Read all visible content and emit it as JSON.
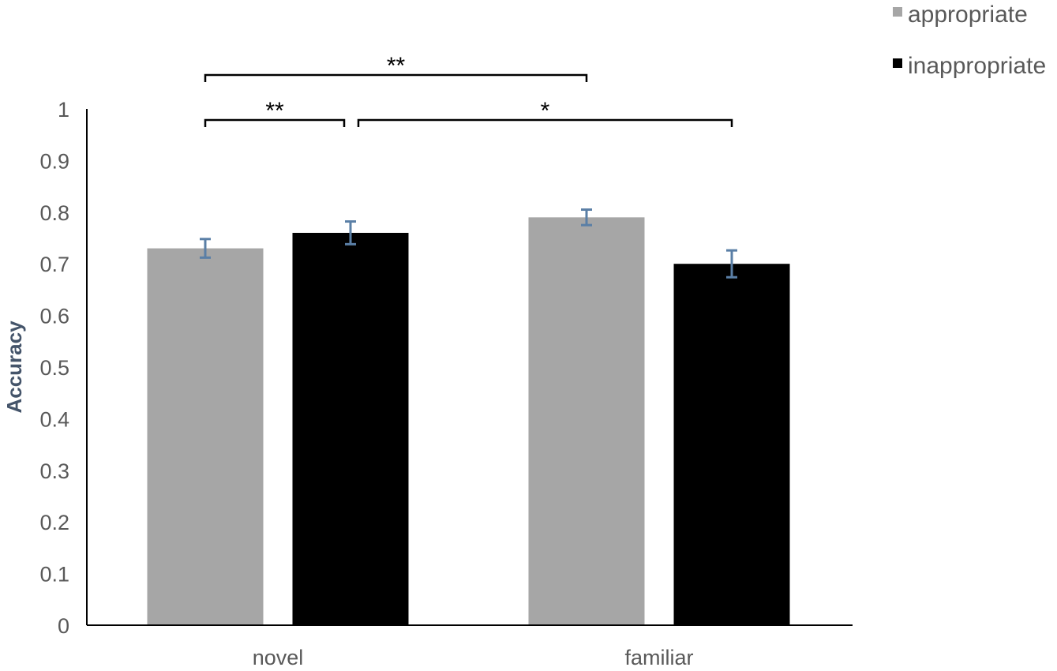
{
  "chart_data": {
    "type": "bar",
    "categories": [
      "novel",
      "familiar"
    ],
    "series": [
      {
        "name": "appropriate",
        "values": [
          0.73,
          0.79
        ],
        "errors": [
          0.018,
          0.015
        ],
        "color": "#a6a6a6"
      },
      {
        "name": "inappropriate",
        "values": [
          0.76,
          0.7
        ],
        "errors": [
          0.022,
          0.026
        ],
        "color": "#000000"
      }
    ],
    "title": "",
    "xlabel": "",
    "ylabel": "Accuracy",
    "ylim": [
      0,
      1
    ],
    "yticks": [
      "0",
      "0.1",
      "0.2",
      "0.3",
      "0.4",
      "0.5",
      "0.6",
      "0.7",
      "0.8",
      "0.9",
      "1"
    ],
    "legend_position": "top-right",
    "error_bar_color": "#5a7fa6",
    "significance": [
      {
        "from": {
          "category": 0,
          "series": 0
        },
        "to": {
          "category": 0,
          "series": 1
        },
        "label": "**"
      },
      {
        "from": {
          "category": 0,
          "series": 0
        },
        "to": {
          "category": 1,
          "series": 0
        },
        "label": "**"
      },
      {
        "from": {
          "category": 0,
          "series": 1
        },
        "to": {
          "category": 1,
          "series": 1
        },
        "label": "*"
      }
    ]
  }
}
